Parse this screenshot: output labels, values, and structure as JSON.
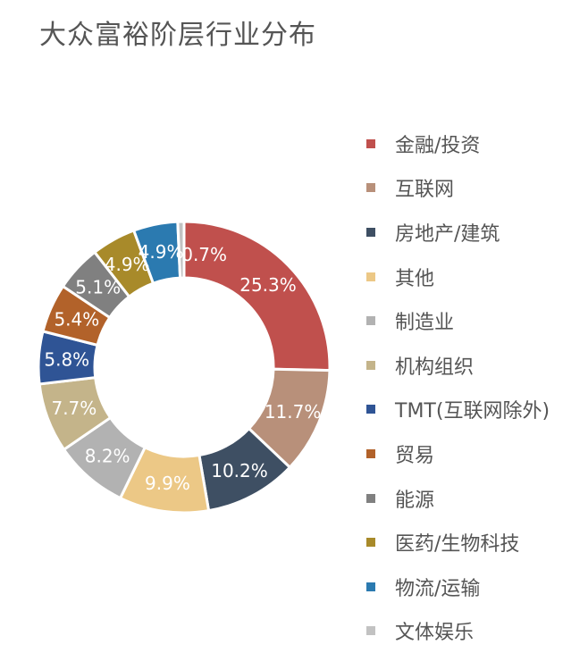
{
  "chart_data": {
    "type": "pie",
    "title": "大众富裕阶层行业分布",
    "categories": [
      "金融/投资",
      "互联网",
      "房地产/建筑",
      "其他",
      "制造业",
      "机构组织",
      "TMT(互联网除外)",
      "贸易",
      "能源",
      "医药/生物科技",
      "物流/运输",
      "文体娱乐"
    ],
    "values": [
      25.3,
      11.7,
      10.2,
      9.9,
      8.2,
      7.7,
      5.8,
      5.4,
      5.1,
      4.9,
      4.9,
      0.7
    ],
    "value_labels": [
      "25.3%",
      "11.7%",
      "10.2%",
      "9.9%",
      "8.2%",
      "7.7%",
      "5.8%",
      "5.4%",
      "5.1%",
      "4.9%",
      "4.9%",
      "0.7%"
    ],
    "colors": [
      "#c0504d",
      "#b8907a",
      "#3e4f63",
      "#ecc886",
      "#b2b2b2",
      "#c4b48a",
      "#2f5495",
      "#b2622a",
      "#808080",
      "#a88a2a",
      "#2b7ab0",
      "#c2c2c2"
    ],
    "legend_position": "right"
  }
}
